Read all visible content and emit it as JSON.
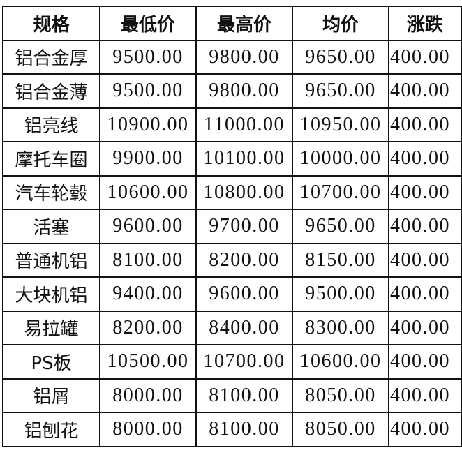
{
  "headers": [
    "规格",
    "最低价",
    "最高价",
    "均价",
    "涨跌"
  ],
  "rows": [
    [
      "铝合金厚",
      "9500.00",
      "9800.00",
      "9650.00",
      "400.00"
    ],
    [
      "铝合金薄",
      "9500.00",
      "9800.00",
      "9650.00",
      "400.00"
    ],
    [
      "铝亮线",
      "10900.00",
      "11000.00",
      "10950.00",
      "400.00"
    ],
    [
      "摩托车圈",
      "9900.00",
      "10100.00",
      "10000.00",
      "400.00"
    ],
    [
      "汽车轮毂",
      "10600.00",
      "10800.00",
      "10700.00",
      "400.00"
    ],
    [
      "活塞",
      "9600.00",
      "9700.00",
      "9650.00",
      "400.00"
    ],
    [
      "普通机铝",
      "8100.00",
      "8200.00",
      "8150.00",
      "400.00"
    ],
    [
      "大块机铝",
      "9400.00",
      "9600.00",
      "9500.00",
      "400.00"
    ],
    [
      "易拉罐",
      "8200.00",
      "8400.00",
      "8300.00",
      "400.00"
    ],
    [
      "PS板",
      "10500.00",
      "10700.00",
      "10600.00",
      "400.00"
    ],
    [
      "铝屑",
      "8000.00",
      "8100.00",
      "8050.00",
      "400.00"
    ],
    [
      "铝刨花",
      "8000.00",
      "8100.00",
      "8050.00",
      "400.00"
    ]
  ]
}
